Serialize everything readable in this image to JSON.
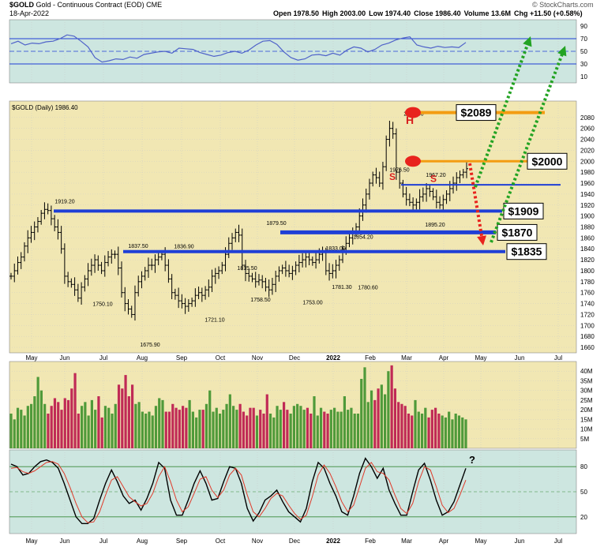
{
  "header": {
    "symbol": "$GOLD",
    "description": "Gold - Continuous Contract (EOD)",
    "exchange": "CME",
    "date": "18-Apr-2022",
    "brand": "© StockCharts.com",
    "stats": [
      {
        "label": "Open",
        "value": "1978.50"
      },
      {
        "label": "High",
        "value": "2003.00"
      },
      {
        "label": "Low",
        "value": "1974.40"
      },
      {
        "label": "Close",
        "value": "1986.40"
      },
      {
        "label": "Volume",
        "value": "13.6M"
      },
      {
        "label": "Chg",
        "value": "+11.50 (+0.58%)"
      }
    ]
  },
  "colors": {
    "price_bg": "#f1e7b3",
    "rsi_bg": "#cde6e0",
    "grid": "#c9c9c9",
    "support_line": "#1f3fd6",
    "resistance_line": "#f39c12",
    "down_arrow": "#e8231d",
    "up_arrow": "#23a323",
    "volume_up": "#4f9a3a",
    "volume_down": "#c02a56",
    "price_bar": "#000000",
    "rsi_line": "#4f62c9",
    "stoch_fast": "#000000",
    "stoch_slow": "#e03a2a"
  },
  "chart_data": [
    {
      "type": "line",
      "panel": "rsi",
      "ylim": [
        0,
        100
      ],
      "y_ticks": [
        "90",
        "70",
        "50",
        "30",
        "10"
      ],
      "reference_levels": [
        70,
        50,
        30
      ],
      "series": [
        {
          "values": [
            62,
            66,
            60,
            63,
            62,
            65,
            66,
            70,
            76,
            74,
            66,
            57,
            40,
            33,
            35,
            38,
            37,
            41,
            39,
            45,
            47,
            49,
            50,
            47,
            55,
            54,
            53,
            48,
            45,
            42,
            44,
            48,
            50,
            47,
            52,
            60,
            66,
            67,
            61,
            49,
            40,
            36,
            38,
            44,
            45,
            43,
            47,
            44,
            52,
            57,
            55,
            49,
            53,
            60,
            63,
            68,
            71,
            73,
            60,
            57,
            55,
            58,
            56,
            57,
            56,
            64
          ]
        }
      ]
    },
    {
      "type": "ohlc",
      "panel": "price",
      "title": "$GOLD (Daily) 1986.40",
      "ylim": [
        1650,
        2110
      ],
      "y_ticks": [
        "2080",
        "2060",
        "2040",
        "2020",
        "2000",
        "1980",
        "1960",
        "1940",
        "1920",
        "1900",
        "1880",
        "1860",
        "1840",
        "1820",
        "1800",
        "1780",
        "1760",
        "1740",
        "1720",
        "1700",
        "1680",
        "1660"
      ],
      "x_ticks": [
        "May",
        "Jun",
        "Jul",
        "Aug",
        "Sep",
        "Oct",
        "Nov",
        "Dec",
        "2022",
        "Feb",
        "Mar",
        "Apr",
        "May",
        "Jun",
        "Jul"
      ],
      "close_series": [
        1790,
        1800,
        1815,
        1825,
        1845,
        1860,
        1870,
        1880,
        1890,
        1905,
        1912,
        1910,
        1895,
        1880,
        1870,
        1840,
        1790,
        1780,
        1775,
        1765,
        1750,
        1770,
        1785,
        1800,
        1810,
        1820,
        1810,
        1800,
        1815,
        1825,
        1830,
        1830,
        1805,
        1760,
        1740,
        1730,
        1720,
        1760,
        1780,
        1790,
        1800,
        1810,
        1810,
        1820,
        1825,
        1830,
        1810,
        1785,
        1760,
        1755,
        1745,
        1740,
        1735,
        1740,
        1745,
        1755,
        1760,
        1755,
        1765,
        1770,
        1790,
        1795,
        1800,
        1810,
        1830,
        1850,
        1860,
        1870,
        1865,
        1810,
        1795,
        1790,
        1785,
        1780,
        1783,
        1780,
        1770,
        1765,
        1775,
        1790,
        1800,
        1805,
        1800,
        1795,
        1800,
        1810,
        1815,
        1820,
        1825,
        1820,
        1815,
        1820,
        1830,
        1835,
        1800,
        1795,
        1800,
        1810,
        1820,
        1840,
        1850,
        1860,
        1870,
        1880,
        1900,
        1920,
        1940,
        1960,
        1975,
        1970,
        1960,
        1990,
        2040,
        2060,
        2050,
        1980,
        1960,
        1940,
        1930,
        1925,
        1920,
        1925,
        1935,
        1940,
        1950,
        1945,
        1935,
        1925,
        1920,
        1930,
        1940,
        1950,
        1960,
        1970,
        1975,
        1980,
        1986.4
      ],
      "labels": [
        {
          "text": "1919.20",
          "x": "Jun",
          "y": 1919.2
        },
        {
          "text": "1837.50",
          "x": "Jul",
          "y": 1837.5
        },
        {
          "text": "1836.90",
          "x": "Sep",
          "y": 1836.9
        },
        {
          "text": "1750.10",
          "x": "Jul",
          "y": 1750.1
        },
        {
          "text": "1675.90",
          "x": "Aug",
          "y": 1675.9
        },
        {
          "text": "1721.10",
          "x": "Oct",
          "y": 1721.1
        },
        {
          "text": "1815.50",
          "x": "Oct",
          "y": 1815.5
        },
        {
          "text": "1758.50",
          "x": "Nov",
          "y": 1758.5
        },
        {
          "text": "1879.50",
          "x": "Nov",
          "y": 1879.5
        },
        {
          "text": "1753.00",
          "x": "Dec",
          "y": 1753.0
        },
        {
          "text": "1833.00",
          "x": "2022",
          "y": 1833.0
        },
        {
          "text": "1781.30",
          "x": "2022",
          "y": 1781.3
        },
        {
          "text": "1780.60",
          "x": "Feb",
          "y": 1780.6
        },
        {
          "text": "1854.20",
          "x": "Feb",
          "y": 1854.2
        },
        {
          "text": "1976.50",
          "x": "Feb",
          "y": 1976.5
        },
        {
          "text": "2078.80",
          "x": "Mar",
          "y": 2078.8
        },
        {
          "text": "1967.20",
          "x": "Mar",
          "y": 1967.2
        },
        {
          "text": "1895.20",
          "x": "Mar",
          "y": 1895.2
        }
      ],
      "pattern_labels": [
        {
          "text": "S",
          "x": "Feb",
          "y": 1966
        },
        {
          "text": "H",
          "x": "Mar",
          "y": 2068
        },
        {
          "text": "S",
          "x": "Mar",
          "y": 1962
        }
      ],
      "levels": [
        {
          "text": "$2089",
          "value": 2089
        },
        {
          "text": "$2000",
          "value": 2000
        },
        {
          "text": "$1909",
          "value": 1909
        },
        {
          "text": "$1870",
          "value": 1870
        },
        {
          "text": "$1835",
          "value": 1835
        }
      ],
      "neckline": 1957
    },
    {
      "type": "bar",
      "panel": "volume",
      "y_ticks": [
        "40M",
        "35M",
        "30M",
        "25M",
        "20M",
        "15M",
        "10M",
        "5M"
      ],
      "ylim": [
        0,
        45
      ],
      "values": [
        18,
        15,
        21,
        20,
        17,
        22,
        23,
        27,
        37,
        30,
        23,
        18,
        22,
        26,
        24,
        20,
        26,
        25,
        31,
        39,
        18,
        22,
        24,
        17,
        25,
        20,
        27,
        16,
        22,
        21,
        18,
        23,
        33,
        31,
        38,
        27,
        33,
        23,
        24,
        19,
        18,
        19,
        17,
        22,
        26,
        25,
        19,
        19,
        23,
        21,
        20,
        22,
        21,
        25,
        19,
        16,
        20,
        20,
        23,
        30,
        19,
        21,
        18,
        20,
        23,
        28,
        22,
        20,
        23,
        19,
        17,
        21,
        21,
        17,
        20,
        18,
        28,
        18,
        16,
        22,
        20,
        24,
        20,
        18,
        22,
        23,
        22,
        20,
        21,
        18,
        27,
        17,
        21,
        19,
        18,
        20,
        21,
        19,
        19,
        27,
        20,
        21,
        18,
        18,
        36,
        42,
        24,
        30,
        25,
        31,
        33,
        28,
        40,
        43,
        31,
        24,
        23,
        22,
        18,
        17,
        25,
        19,
        18,
        21,
        16,
        20,
        21,
        18,
        17,
        16,
        19,
        15,
        18,
        17,
        16,
        15
      ]
    },
    {
      "type": "line",
      "panel": "stochastic",
      "ylim": [
        0,
        100
      ],
      "y_ticks": [
        "80",
        "50",
        "20"
      ],
      "annotation": "?",
      "series": [
        {
          "values": [
            83,
            80,
            70,
            72,
            80,
            86,
            88,
            85,
            78,
            60,
            40,
            20,
            12,
            12,
            18,
            40,
            60,
            76,
            62,
            45,
            36,
            40,
            28,
            42,
            60,
            85,
            78,
            40,
            22,
            22,
            40,
            60,
            75,
            60,
            40,
            42,
            62,
            80,
            78,
            60,
            30,
            15,
            25,
            40,
            45,
            52,
            38,
            26,
            20,
            14,
            30,
            62,
            85,
            78,
            60,
            45,
            26,
            22,
            45,
            72,
            90,
            80,
            66,
            78,
            52,
            36,
            22,
            22,
            50,
            76,
            84,
            64,
            40,
            22,
            26,
            38,
            58,
            78
          ]
        },
        {
          "values": [
            78,
            79,
            74,
            72,
            75,
            80,
            85,
            86,
            83,
            72,
            55,
            36,
            20,
            13,
            14,
            26,
            46,
            64,
            68,
            56,
            44,
            38,
            33,
            36,
            48,
            68,
            80,
            62,
            40,
            26,
            32,
            48,
            65,
            68,
            52,
            43,
            52,
            70,
            78,
            70,
            46,
            26,
            20,
            30,
            42,
            48,
            45,
            34,
            24,
            17,
            22,
            44,
            70,
            82,
            72,
            56,
            38,
            26,
            34,
            56,
            78,
            85,
            74,
            72,
            64,
            46,
            30,
            24,
            36,
            62,
            80,
            76,
            56,
            34,
            25,
            30,
            46,
            64
          ]
        }
      ]
    }
  ]
}
